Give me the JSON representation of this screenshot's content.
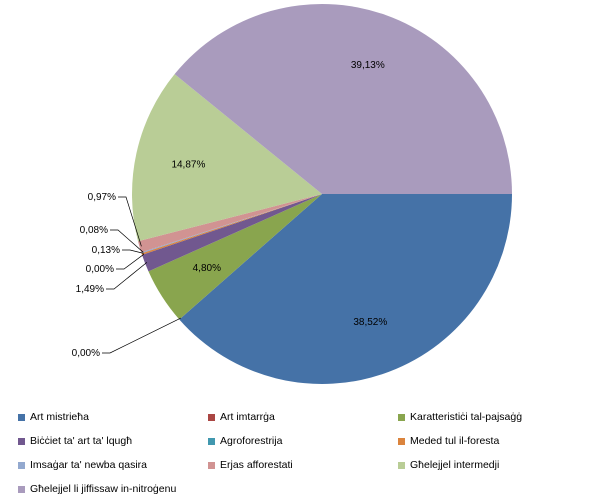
{
  "chart_data": {
    "type": "pie",
    "title": "",
    "legend_position": "bottom",
    "slices": [
      {
        "name": "Art mistrieħa",
        "value": 38.52,
        "label": "38,52%",
        "color": "#4572a7"
      },
      {
        "name": "Art imtarrġa",
        "value": 0.0,
        "label": "0,00%",
        "color": "#aa4643"
      },
      {
        "name": "Karatteristiċi tal-pajsaġġ",
        "value": 4.8,
        "label": "4,80%",
        "color": "#89a54e"
      },
      {
        "name": "Biċċiet ta' art ta' lqugħ",
        "value": 1.49,
        "label": "1,49%",
        "color": "#71588f"
      },
      {
        "name": "Agroforestrija",
        "value": 0.0,
        "label": "0,00%",
        "color": "#4198af"
      },
      {
        "name": "Meded tul il-foresta",
        "value": 0.13,
        "label": "0,13%",
        "color": "#db843d"
      },
      {
        "name": "Imsaġar ta' newba qasira",
        "value": 0.08,
        "label": "0,08%",
        "color": "#93a9cf"
      },
      {
        "name": "Erjas afforestati",
        "value": 0.97,
        "label": "0,97%",
        "color": "#d19392"
      },
      {
        "name": "Għelejjel intermedji",
        "value": 14.87,
        "label": "14,87%",
        "color": "#b9cd96"
      },
      {
        "name": "Għelejjel li jiffissaw in-nitroġenu",
        "value": 39.13,
        "label": "39,13%",
        "color": "#a99bbd"
      }
    ]
  }
}
